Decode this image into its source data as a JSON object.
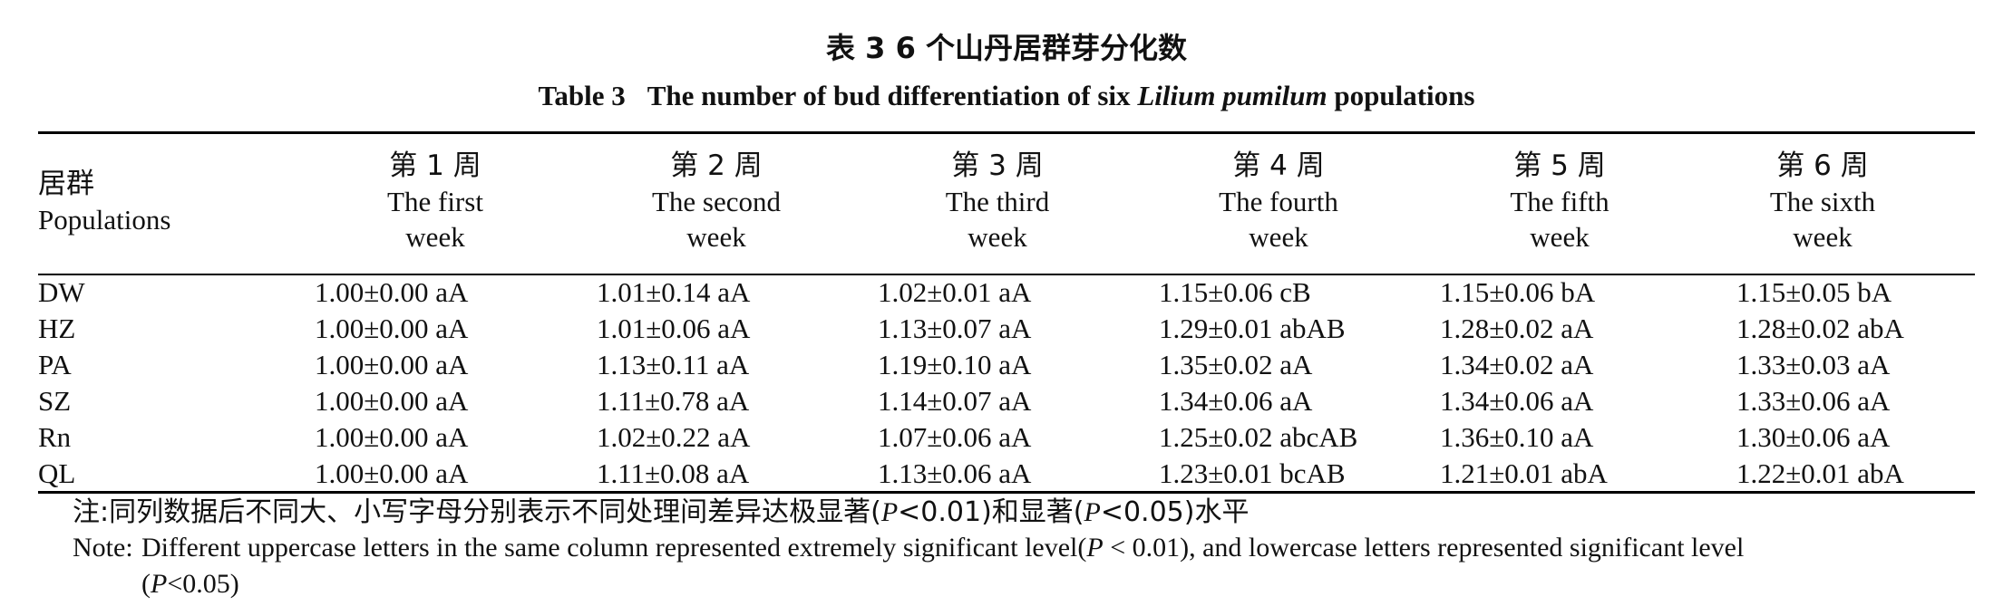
{
  "title_cn": "表 3   6 个山丹居群芽分化数",
  "title_en_prefix": "Table 3",
  "title_en_main": "The number of bud differentiation of six ",
  "title_en_species": "Lilium pumilum",
  "title_en_suffix": " populations",
  "header": {
    "population_cn": "居群",
    "population_en": "Populations",
    "weeks": [
      {
        "cn": "第 1 周",
        "en1": "The first",
        "en2": "week"
      },
      {
        "cn": "第 2 周",
        "en1": "The second",
        "en2": "week"
      },
      {
        "cn": "第 3 周",
        "en1": "The third",
        "en2": "week"
      },
      {
        "cn": "第 4 周",
        "en1": "The fourth",
        "en2": "week"
      },
      {
        "cn": "第 5 周",
        "en1": "The fifth",
        "en2": "week"
      },
      {
        "cn": "第 6 周",
        "en1": "The sixth",
        "en2": "week"
      }
    ]
  },
  "rows": [
    {
      "population": "DW",
      "values": [
        "1.00±0.00 aA",
        "1.01±0.14 aA",
        "1.02±0.01 aA",
        "1.15±0.06 cB",
        "1.15±0.06 bA",
        "1.15±0.05 bA"
      ]
    },
    {
      "population": "HZ",
      "values": [
        "1.00±0.00 aA",
        "1.01±0.06 aA",
        "1.13±0.07 aA",
        "1.29±0.01 abAB",
        "1.28±0.02 aA",
        "1.28±0.02 abA"
      ]
    },
    {
      "population": "PA",
      "values": [
        "1.00±0.00 aA",
        "1.13±0.11 aA",
        "1.19±0.10 aA",
        "1.35±0.02 aA",
        "1.34±0.02 aA",
        "1.33±0.03 aA"
      ]
    },
    {
      "population": "SZ",
      "values": [
        "1.00±0.00 aA",
        "1.11±0.78 aA",
        "1.14±0.07 aA",
        "1.34±0.06 aA",
        "1.34±0.06 aA",
        "1.33±0.06 aA"
      ]
    },
    {
      "population": "Rn",
      "values": [
        "1.00±0.00 aA",
        "1.02±0.22 aA",
        "1.07±0.06 aA",
        "1.25±0.02 abcAB",
        "1.36±0.10 aA",
        "1.30±0.06 aA"
      ]
    },
    {
      "population": "QL",
      "values": [
        "1.00±0.00 aA",
        "1.11±0.08 aA",
        "1.13±0.06 aA",
        "1.23±0.01 bcAB",
        "1.21±0.01 abA",
        "1.22±0.01 abA"
      ]
    }
  ],
  "note_cn": {
    "label": "注:",
    "text1": "同列数据后不同大、小写字母分别表示不同处理间差异达极显著(",
    "p1": "P",
    "text2": "<0.01)和显著(",
    "p2": "P",
    "text3": "<0.05)水平"
  },
  "note_en": {
    "label": "Note:",
    "text1": "Different uppercase letters in the same column represented extremely significant level(",
    "p1": "P",
    "text2": " < 0.01), and lowercase letters represented significant level",
    "text3": "(",
    "p2": "P",
    "text4": "<0.05)"
  }
}
